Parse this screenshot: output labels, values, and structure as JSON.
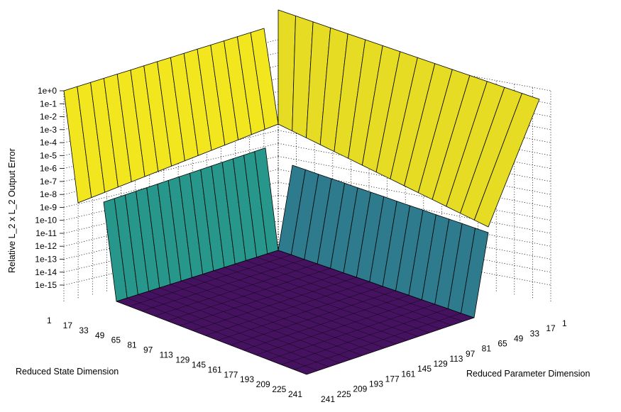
{
  "chart_data": {
    "type": "surface3d",
    "title": "",
    "xlabel": "Reduced State Dimension",
    "ylabel": "Reduced Parameter Dimension",
    "zlabel": "Relative L_2 x L_2 Output Error",
    "x_ticks": [
      "1",
      "17",
      "33",
      "49",
      "65",
      "81",
      "97",
      "113",
      "129",
      "145",
      "161",
      "177",
      "193",
      "209",
      "225",
      "241"
    ],
    "y_ticks": [
      "1",
      "17",
      "33",
      "49",
      "65",
      "81",
      "97",
      "113",
      "129",
      "145",
      "161",
      "177",
      "193",
      "209",
      "225",
      "241"
    ],
    "z_ticks": [
      "1e+0",
      "1e-1",
      "1e-2",
      "1e-3",
      "1e-4",
      "1e-5",
      "1e-6",
      "1e-7",
      "1e-8",
      "1e-9",
      "1e-10",
      "1e-11",
      "1e-12",
      "1e-13",
      "1e-14",
      "1e-15"
    ],
    "grid": true,
    "colormap": "viridis",
    "colors": {
      "high": "#f2e61f",
      "mid_state": "#27968b",
      "mid_param": "#2e7b8e",
      "low": "#45125f",
      "top_param": "#e6dc24"
    }
  }
}
